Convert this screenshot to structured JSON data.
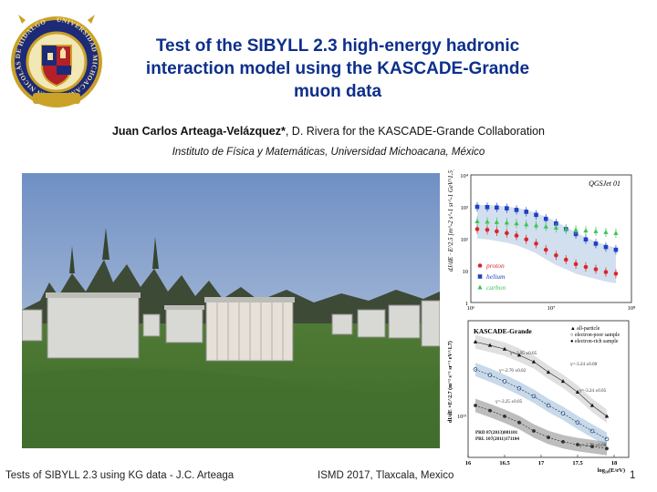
{
  "title": {
    "line1": "Test of the SIBYLL 2.3 high-energy hadronic",
    "line2": "interaction model using the KASCADE-Grande",
    "line3": "muon data"
  },
  "authors": {
    "main": "Juan Carlos Arteaga-Velázquez*",
    "rest": ", D. Rivera for the KASCADE-Grande Collaboration"
  },
  "institution": "Instituto de Física y Matemáticas, Universidad Michoacana, México",
  "seal": {
    "ring_text": "UNIVERSIDAD MICHOACANA DE SAN NICOLÁS DE HIDALGO"
  },
  "footer": {
    "left": "Tests of SIBYLL 2.3 using KG data - J.C. Arteaga",
    "center": "ISMD 2017, Tlaxcala, Mexico",
    "page": "1"
  },
  "colors": {
    "title": "#0d2f8c",
    "proton": "#d9262a",
    "helium": "#1f3fc4",
    "carbon": "#3cc457"
  },
  "chart_data": [
    {
      "type": "scatter",
      "title": "QGSJet 01",
      "ylabel": "dJ/dE · E^2.5  [m^-2 s^-1 sr^-1 GeV^1.5]",
      "xlabel": "",
      "x_log": true,
      "y_log": true,
      "xlim": [
        1000000,
        100000000
      ],
      "ylim": [
        1,
        10000
      ],
      "y_tick_labels": [
        "1",
        "10",
        "10²",
        "10³",
        "10⁴"
      ],
      "x_tick_labels": [
        "10⁶",
        "10⁷",
        "10⁸"
      ],
      "legend_position": "lower-left",
      "series": [
        {
          "name": "proton",
          "color": "#d9262a",
          "marker": "circle",
          "x": [
            1200000,
            1600000,
            2100000,
            2800000,
            3700000,
            4900000,
            6500000,
            8600000,
            11500000,
            15300000,
            20300000,
            27000000,
            36000000,
            48000000,
            64000000
          ],
          "y": [
            200,
            190,
            170,
            150,
            125,
            95,
            70,
            45,
            30,
            22,
            16,
            13,
            11,
            9,
            8
          ]
        },
        {
          "name": "helium",
          "color": "#1f3fc4",
          "marker": "square",
          "x": [
            1200000,
            1600000,
            2100000,
            2800000,
            3700000,
            4900000,
            6500000,
            8600000,
            11500000,
            15300000,
            20300000,
            27000000,
            36000000,
            48000000,
            64000000
          ],
          "y": [
            1000,
            980,
            950,
            900,
            800,
            700,
            560,
            420,
            300,
            200,
            140,
            95,
            70,
            55,
            45
          ]
        },
        {
          "name": "carbon",
          "color": "#3cc457",
          "marker": "triangle",
          "x": [
            1200000,
            1600000,
            2100000,
            2800000,
            3700000,
            4900000,
            6500000,
            8600000,
            11500000,
            15300000,
            20300000,
            27000000,
            36000000,
            48000000,
            64000000
          ],
          "y": [
            350,
            340,
            330,
            320,
            300,
            280,
            260,
            240,
            220,
            200,
            190,
            180,
            170,
            160,
            150
          ]
        }
      ]
    },
    {
      "type": "line",
      "title": "KASCADE-Grande",
      "xlabel": "log₁₀(E/eV)",
      "ylabel": "dI/dE ×E^2.7 (m⁻² s⁻¹ sr⁻¹ eV^1.7)",
      "xlim": [
        16,
        18.2
      ],
      "y_log": true,
      "ylim": [
        5e+18,
        5e+19
      ],
      "x_ticks": [
        16,
        16.5,
        17,
        17.5,
        18
      ],
      "x_tick_labels": [
        "16",
        "16.5",
        "17",
        "17.5",
        "18"
      ],
      "y_tick_labels": [
        "10¹⁹"
      ],
      "legend_position": "top-right",
      "legend": [
        "all-particle",
        "electron-poor sample",
        "electron-rich sample"
      ],
      "annotations": [
        "γ=-2.95 ±0.05",
        "γ=-3.24 ±0.08",
        "γ=-2.76 ±0.02",
        "γ=-3.24 ±0.05",
        "γ=-3.25 ±0.05",
        "γ=-2.79 ±0.08",
        "PRD 87(2013)081101",
        "PRL 107(2011)171104"
      ],
      "series": [
        {
          "name": "all-particle",
          "x": [
            16.1,
            16.3,
            16.5,
            16.7,
            16.9,
            17.1,
            17.3,
            17.5,
            17.7,
            17.9
          ],
          "y": [
            3.5e+19,
            3.3e+19,
            3.1e+19,
            2.8e+19,
            2.5e+19,
            2.1e+19,
            1.8e+19,
            1.5e+19,
            1.2e+19,
            1e+19
          ]
        },
        {
          "name": "electron-poor sample",
          "x": [
            16.1,
            16.3,
            16.5,
            16.7,
            16.9,
            17.1,
            17.3,
            17.5,
            17.7,
            17.9
          ],
          "y": [
            2.2e+19,
            2e+19,
            1.8e+19,
            1.6e+19,
            1.4e+19,
            1.2e+19,
            1.05e+19,
            9e+18,
            7.8e+18,
            6.8e+18
          ]
        },
        {
          "name": "electron-rich sample",
          "x": [
            16.1,
            16.3,
            16.5,
            16.7,
            16.9,
            17.1,
            17.3,
            17.5,
            17.7,
            17.9
          ],
          "y": [
            1.2e+19,
            1.1e+19,
            1e+19,
            9e+18,
            7.8e+18,
            7e+18,
            6.5e+18,
            6.2e+18,
            6e+18,
            5.8e+18
          ]
        }
      ]
    }
  ]
}
